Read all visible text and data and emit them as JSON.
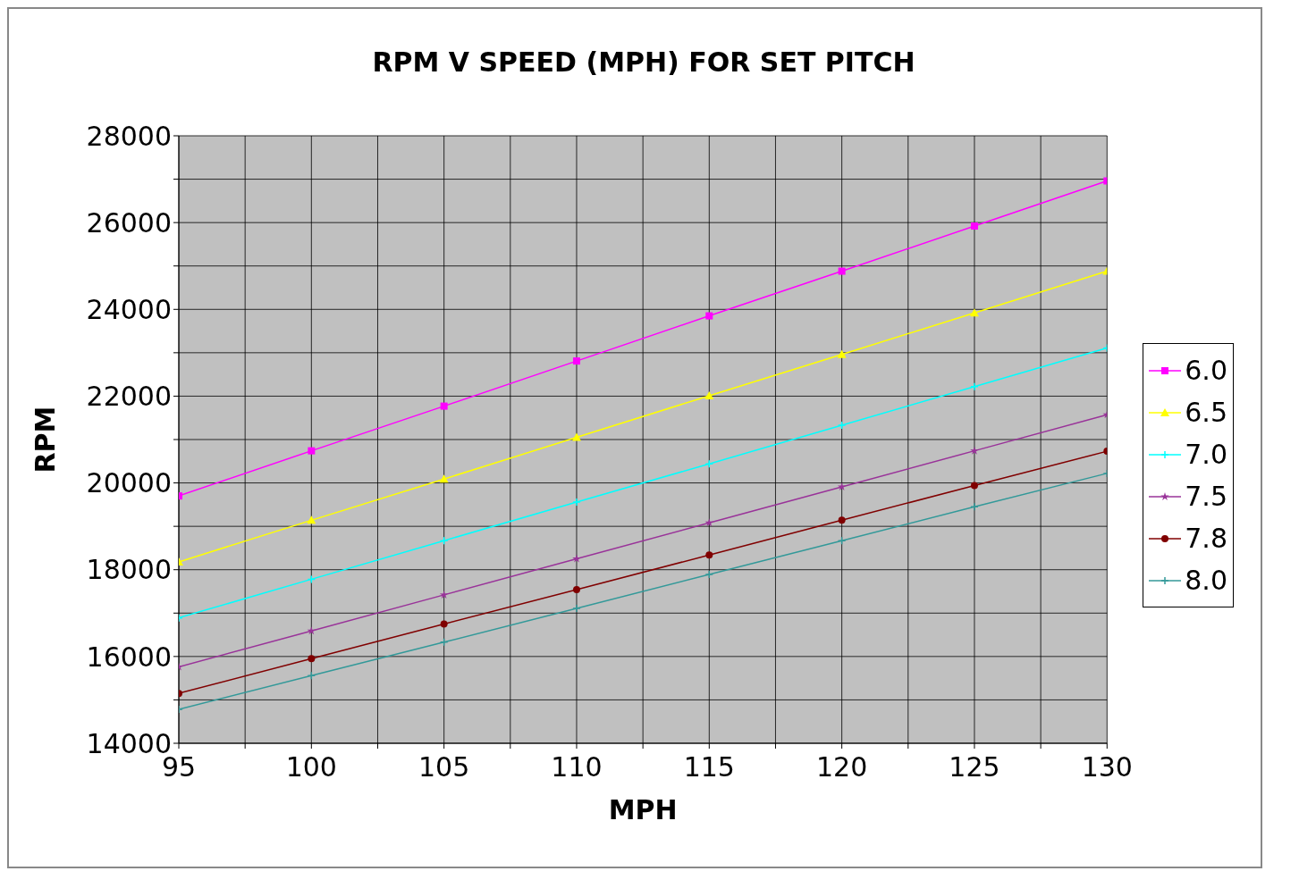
{
  "chart_data": {
    "type": "line",
    "title": "RPM V SPEED (MPH) FOR SET PITCH",
    "xlabel": "MPH",
    "ylabel": "RPM",
    "x": [
      95,
      100,
      105,
      110,
      115,
      120,
      125,
      130
    ],
    "series": [
      {
        "name": "6.0",
        "color": "#ff00ff",
        "marker": "square",
        "values": [
          19700,
          20740,
          21770,
          22810,
          23850,
          24880,
          25920,
          26960
        ]
      },
      {
        "name": "6.5",
        "color": "#ffff00",
        "marker": "triangle",
        "values": [
          18180,
          19140,
          20090,
          21050,
          22010,
          22960,
          23920,
          24880
        ]
      },
      {
        "name": "7.0",
        "color": "#00ffff",
        "marker": "cross",
        "values": [
          16890,
          17780,
          18670,
          19560,
          20440,
          21330,
          22220,
          23110
        ]
      },
      {
        "name": "7.5",
        "color": "#993399",
        "marker": "star",
        "values": [
          15760,
          16590,
          17420,
          18250,
          19080,
          19910,
          20740,
          21570
        ]
      },
      {
        "name": "7.8",
        "color": "#800000",
        "marker": "circle",
        "values": [
          15150,
          15950,
          16750,
          17540,
          18340,
          19140,
          19940,
          20730
        ]
      },
      {
        "name": "8.0",
        "color": "#339999",
        "marker": "cross",
        "values": [
          14780,
          15560,
          16330,
          17110,
          17890,
          18670,
          19450,
          20220
        ]
      }
    ],
    "xlim": [
      95,
      130
    ],
    "xticks": [
      95,
      {
        "value": 97.5,
        "label": null
      },
      100,
      {
        "value": 102.5,
        "label": null
      },
      105,
      {
        "value": 107.5,
        "label": null
      },
      110,
      {
        "value": 112.5,
        "label": null
      },
      115,
      {
        "value": 117.5,
        "label": null
      },
      120,
      {
        "value": 122.5,
        "label": null
      },
      125,
      {
        "value": 127.5,
        "label": null
      },
      130
    ],
    "ylim": [
      14000,
      28000
    ],
    "yticks": [
      14000,
      {
        "value": 15000,
        "label": null
      },
      16000,
      {
        "value": 17000,
        "label": null
      },
      18000,
      {
        "value": 19000,
        "label": null
      },
      20000,
      {
        "value": 21000,
        "label": null
      },
      22000,
      {
        "value": 23000,
        "label": null
      },
      24000,
      {
        "value": 25000,
        "label": null
      },
      26000,
      {
        "value": 27000,
        "label": null
      },
      28000
    ],
    "grid": true,
    "legend": "right",
    "line_style": "solid"
  }
}
